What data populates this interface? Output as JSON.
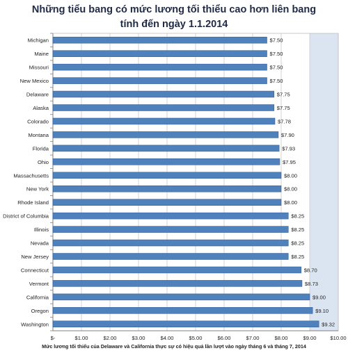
{
  "chart_data": {
    "type": "bar",
    "orientation": "horizontal",
    "title_lines": [
      "Những tiểu bang có mức lương tối thiểu cao hơn liên bang",
      "tính đến ngày 1.1.2014"
    ],
    "categories": [
      "Michigan",
      "Maine",
      "Missouri",
      "New Mexico",
      "Delaware",
      "Alaska",
      "Colorado",
      "Montana",
      "Florida",
      "Ohio",
      "Massachusetts",
      "New York",
      "Rhode Island",
      "District of Columbia",
      "Illinois",
      "Nevada",
      "New Jersey",
      "Connecticut",
      "Vermont",
      "California",
      "Oregon",
      "Washington"
    ],
    "values": [
      7.5,
      7.5,
      7.5,
      7.5,
      7.75,
      7.75,
      7.78,
      7.9,
      7.93,
      7.95,
      8.0,
      8.0,
      8.0,
      8.25,
      8.25,
      8.25,
      8.25,
      8.7,
      8.73,
      9.0,
      9.1,
      9.32
    ],
    "value_labels": [
      "$7.50",
      "$7.50",
      "$7.50",
      "$7.50",
      "$7.75",
      "$7.75",
      "$7.78",
      "$7.90",
      "$7.93",
      "$7.95",
      "$8.00",
      "$8.00",
      "$8.00",
      "$8.25",
      "$8.25",
      "$8.25",
      "$8.25",
      "$8.70",
      "$8.73",
      "$9.00",
      "$9.10",
      "$9.32"
    ],
    "x_ticks": [
      0,
      1,
      2,
      3,
      4,
      5,
      6,
      7,
      8,
      9,
      10
    ],
    "x_tick_labels": [
      "$-",
      "$1.00",
      "$2.00",
      "$3.00",
      "$4.00",
      "$5.00",
      "$6.00",
      "$7.00",
      "$8.00",
      "$9.00",
      "$10.00"
    ],
    "xlim": [
      0,
      10
    ],
    "grid": "vertical",
    "highlight_band": [
      9,
      10
    ],
    "footnote": "Mức lương tối thiểu của Delaware và California  thực sự có hiệu quả lần lượt vào ngày tháng 6 và tháng 7, 2014",
    "colors": {
      "bar": "#4f81bd",
      "bar_edge": "#3a6396",
      "grid": "#c8c8c8",
      "band": "#dbe5f1",
      "title": "#1f2a44"
    }
  }
}
